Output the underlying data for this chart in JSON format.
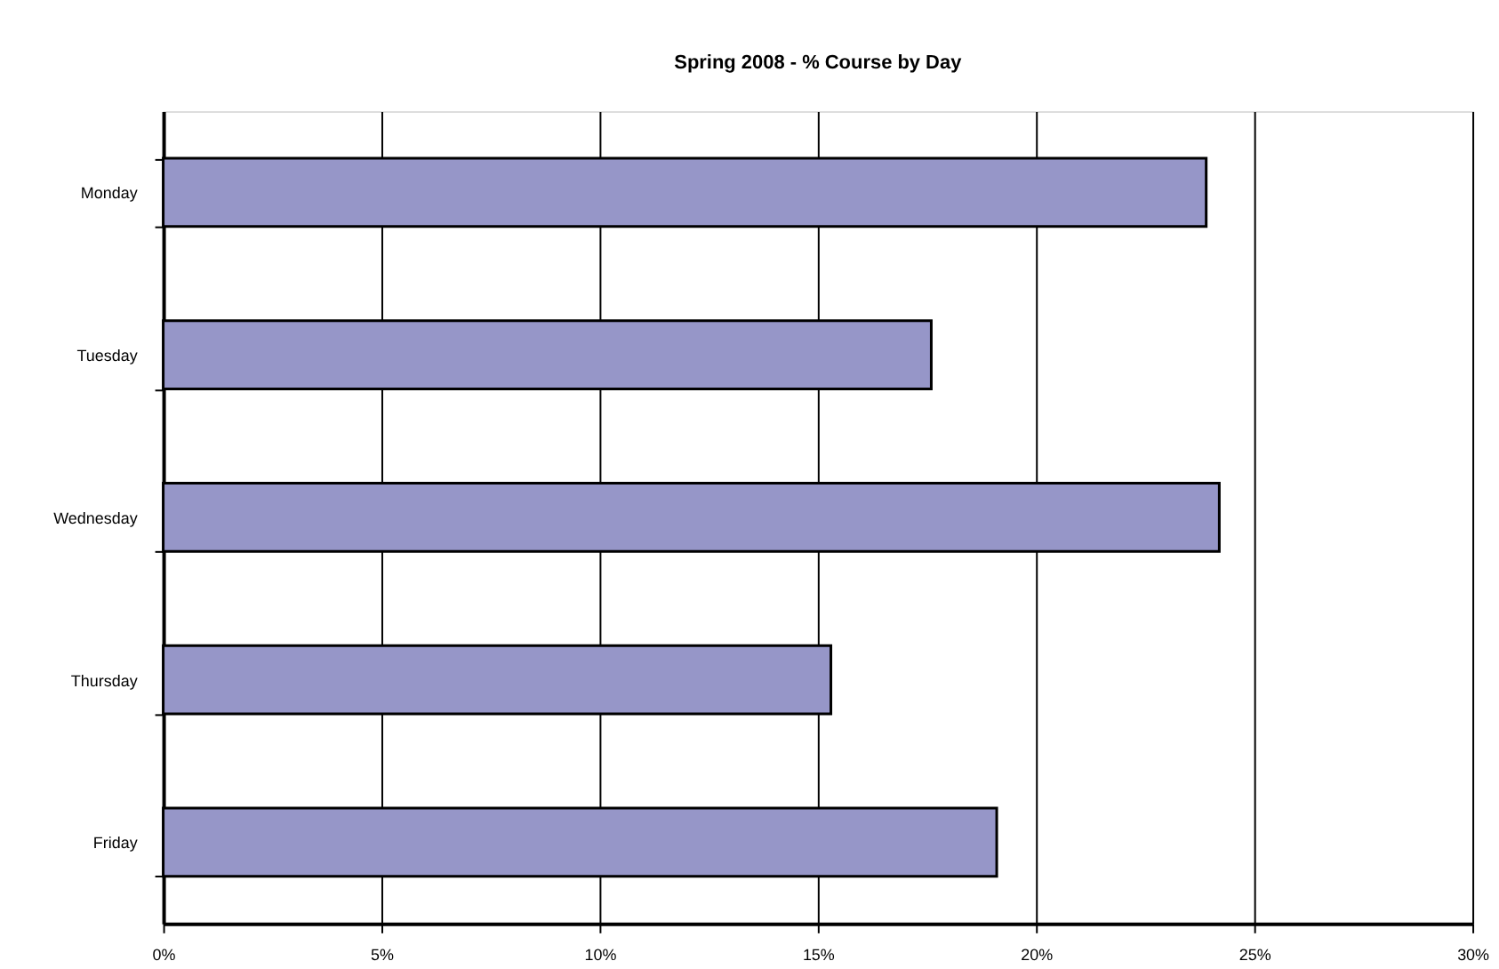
{
  "chart_data": {
    "type": "bar",
    "orientation": "horizontal",
    "title": "Spring 2008 - % Course by Day",
    "categories": [
      "Monday",
      "Tuesday",
      "Wednesday",
      "Thursday",
      "Friday"
    ],
    "values": [
      23.9,
      17.6,
      24.2,
      15.3,
      19.1
    ],
    "color": "#9696c8",
    "xlim": [
      0,
      30
    ],
    "xticks": [
      {
        "value": 0,
        "label": "0%"
      },
      {
        "value": 5,
        "label": "5%"
      },
      {
        "value": 10,
        "label": "10%"
      },
      {
        "value": 15,
        "label": "15%"
      },
      {
        "value": 20,
        "label": "20%"
      },
      {
        "value": 25,
        "label": "25%"
      },
      {
        "value": 30,
        "label": "30%"
      }
    ],
    "grid": "x"
  }
}
